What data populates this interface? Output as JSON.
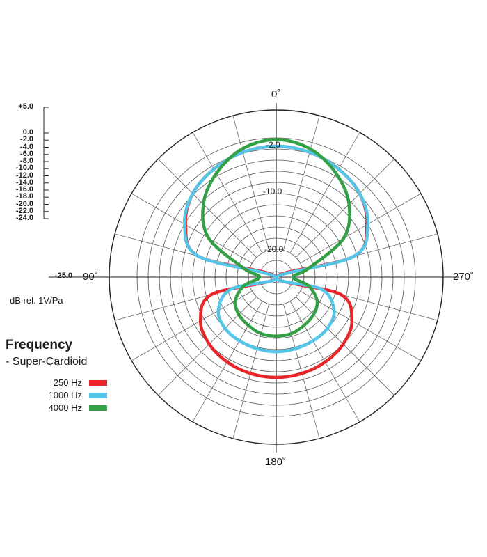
{
  "chart_data": {
    "type": "polar",
    "title": "",
    "units_label": "dB rel. 1V/Pa",
    "scale_labels": [
      "+5.0",
      "0.0",
      "-2.0",
      "-4.0",
      "-6.0",
      "-8.0",
      "-10.0",
      "-12.0",
      "-14.0",
      "-16.0",
      "-18.0",
      "-20.0",
      "-22.0",
      "-24.0",
      "-25.0"
    ],
    "radial_range_db": [
      -25,
      5
    ],
    "ring_labels": [
      "-2.0",
      "-10.0",
      "-20.0"
    ],
    "angle_labels": {
      "top": "0˚",
      "left": "90˚",
      "right": "270˚",
      "bottom": "180˚"
    },
    "grid": true,
    "legend": {
      "title": "Frequency",
      "subtitle": "- Super-Cardioid",
      "placement": "bottom-left"
    },
    "series": [
      {
        "name": "250 Hz",
        "color": "#e8262a",
        "angles_deg": [
          0,
          15,
          30,
          45,
          60,
          75,
          90,
          105,
          120,
          135,
          150,
          165,
          180
        ],
        "values_db": [
          -1.5,
          -1.8,
          -2.6,
          -3.8,
          -6.2,
          -10.5,
          -25.0,
          -13.0,
          -9.3,
          -8.0,
          -7.4,
          -7.1,
          -7.0
        ]
      },
      {
        "name": "1000 Hz",
        "color": "#55c5e8",
        "angles_deg": [
          0,
          15,
          30,
          45,
          60,
          75,
          90,
          105,
          120,
          135,
          150,
          165,
          180
        ],
        "values_db": [
          -1.5,
          -1.8,
          -2.6,
          -3.8,
          -6.0,
          -10.5,
          -25.0,
          -16.5,
          -13.0,
          -12.0,
          -11.8,
          -11.7,
          -11.6
        ]
      },
      {
        "name": "4000 Hz",
        "color": "#34a046",
        "angles_deg": [
          0,
          15,
          30,
          45,
          60,
          75,
          90,
          105,
          120,
          135,
          150,
          165,
          180
        ],
        "values_db": [
          -0.3,
          -1.2,
          -3.5,
          -6.5,
          -11.0,
          -19.0,
          -22.0,
          -19.0,
          -16.5,
          -15.5,
          -15.0,
          -14.5,
          -14.4
        ]
      }
    ]
  }
}
